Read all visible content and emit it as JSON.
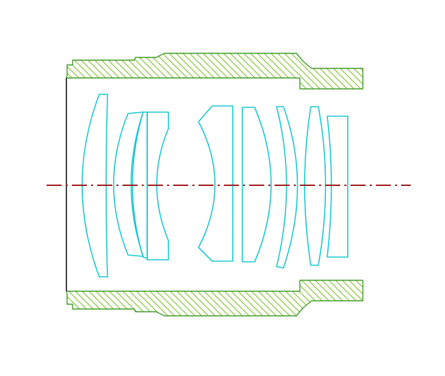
{
  "colors": {
    "background": "#ffffff",
    "housing_stroke": "#3d9a24",
    "hatch": "#8cc63f",
    "lens_stroke": "#16c8cf",
    "edge_stroke": "#111111",
    "axis_stroke": "#a01818"
  },
  "diagram": {
    "housing_parts": [
      "housing-top",
      "housing-bottom"
    ],
    "lens_elements": [
      "lens-1-meniscus",
      "lens-2-meniscus",
      "lens-3-cemented-front",
      "lens-3-cemented-rear",
      "lens-4-biconcave",
      "lens-5-plano-convex",
      "lens-6-meniscus",
      "lens-7-convex",
      "lens-8-rear"
    ],
    "optical_axis": "dash-dot"
  }
}
